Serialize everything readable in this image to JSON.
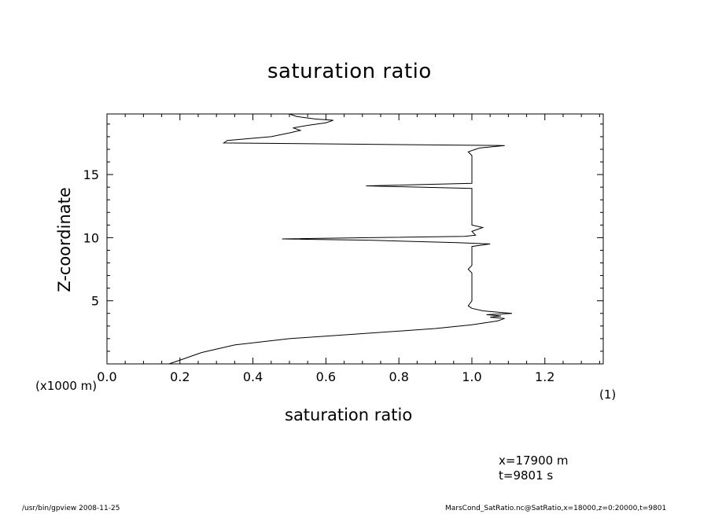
{
  "chart_data": {
    "type": "line",
    "title": "saturation ratio",
    "xlabel": "saturation ratio",
    "ylabel": "Z-coordinate",
    "y_unit_note": "(x1000 m)",
    "x_unit_note": "(1)",
    "xlim": [
      0.0,
      1.36
    ],
    "ylim": [
      0.0,
      19.8
    ],
    "x_ticks": [
      "0.0",
      "0.2",
      "0.4",
      "0.6",
      "0.8",
      "1.0",
      "1.2"
    ],
    "x_tick_values": [
      0.0,
      0.2,
      0.4,
      0.6,
      0.8,
      1.0,
      1.2
    ],
    "y_ticks": [
      "5",
      "10",
      "15"
    ],
    "y_tick_values": [
      5,
      10,
      15
    ],
    "grid": false,
    "series": [
      {
        "points": [
          [
            0.17,
            0.0
          ],
          [
            0.21,
            0.4
          ],
          [
            0.26,
            0.9
          ],
          [
            0.35,
            1.5
          ],
          [
            0.5,
            2.0
          ],
          [
            0.7,
            2.4
          ],
          [
            0.9,
            2.8
          ],
          [
            1.0,
            3.1
          ],
          [
            1.07,
            3.4
          ],
          [
            1.09,
            3.6
          ],
          [
            1.05,
            3.7
          ],
          [
            1.08,
            3.8
          ],
          [
            1.04,
            3.9
          ],
          [
            1.11,
            4.0
          ],
          [
            1.03,
            4.2
          ],
          [
            1.0,
            4.4
          ],
          [
            0.99,
            4.6
          ],
          [
            1.0,
            5.0
          ],
          [
            1.0,
            6.0
          ],
          [
            1.0,
            7.2
          ],
          [
            0.99,
            7.5
          ],
          [
            1.0,
            7.8
          ],
          [
            1.0,
            9.0
          ],
          [
            1.0,
            9.3
          ],
          [
            1.05,
            9.5
          ],
          [
            0.96,
            9.6
          ],
          [
            0.72,
            9.8
          ],
          [
            0.48,
            9.9
          ],
          [
            0.72,
            10.0
          ],
          [
            0.98,
            10.1
          ],
          [
            1.01,
            10.2
          ],
          [
            1.0,
            10.5
          ],
          [
            1.03,
            10.8
          ],
          [
            1.0,
            11.0
          ],
          [
            1.0,
            12.0
          ],
          [
            1.0,
            13.0
          ],
          [
            1.0,
            13.9
          ],
          [
            0.71,
            14.1
          ],
          [
            1.0,
            14.3
          ],
          [
            1.0,
            15.0
          ],
          [
            1.0,
            16.2
          ],
          [
            1.0,
            16.5
          ],
          [
            0.99,
            16.8
          ],
          [
            1.01,
            17.0
          ],
          [
            1.02,
            17.1
          ],
          [
            1.09,
            17.3
          ],
          [
            0.32,
            17.5
          ],
          [
            0.33,
            17.7
          ],
          [
            0.45,
            18.0
          ],
          [
            0.5,
            18.3
          ],
          [
            0.53,
            18.5
          ],
          [
            0.51,
            18.7
          ],
          [
            0.55,
            18.9
          ],
          [
            0.6,
            19.1
          ],
          [
            0.62,
            19.3
          ],
          [
            0.57,
            19.4
          ],
          [
            0.52,
            19.6
          ],
          [
            0.5,
            19.8
          ]
        ]
      }
    ]
  },
  "info": {
    "x_position": "x=17900  m",
    "time": "t=9801  s"
  },
  "footer": {
    "left": "/usr/bin/gpview   2008-11-25",
    "right": "MarsCond_SatRatio.nc@SatRatio,x=18000,z=0:20000,t=9801"
  }
}
